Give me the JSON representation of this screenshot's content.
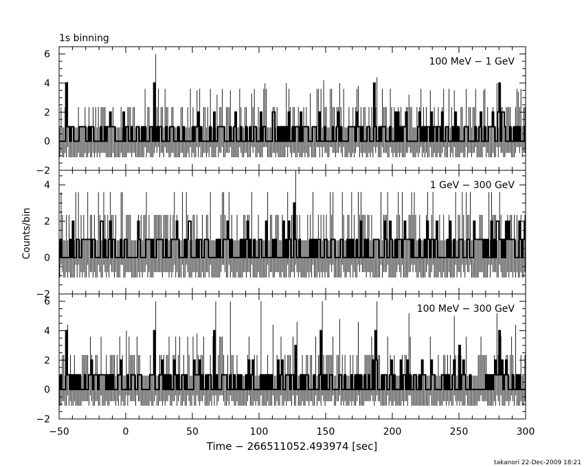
{
  "header_label": "1s binning",
  "ylabel": "Counts/bin",
  "xlabel": "Time − 266511052.493974 [sec]",
  "footer": "takanori 22-Dec-2009 18:21",
  "chart_data": [
    {
      "type": "bar",
      "panel_label": "100 MeV − 1 GeV",
      "xlim": [
        -50,
        300
      ],
      "ylim": [
        -2,
        6.5
      ],
      "y_ticks": [
        -2,
        0,
        2,
        4,
        6
      ],
      "bin_width": 1,
      "error_bars": "poisson",
      "spike_times": [
        -45,
        21,
        66,
        101,
        110,
        145,
        186,
        280
      ],
      "spike_values": [
        4,
        4,
        2,
        2,
        2,
        2,
        4,
        4
      ],
      "peak_times": [
        -44,
        22,
        53,
        68,
        78,
        94,
        104,
        120,
        138,
        148,
        160,
        174,
        188,
        212,
        228,
        246,
        268,
        278,
        294
      ],
      "peak_values": [
        4.1,
        6.0,
        3.5,
        3.2,
        3.5,
        3.3,
        4.0,
        4.0,
        3.3,
        4.2,
        4.0,
        3.8,
        4.4,
        3.2,
        3.5,
        3.5,
        3.5,
        4.0,
        3.4
      ]
    },
    {
      "type": "bar",
      "panel_label": "1 GeV − 300 GeV",
      "xlim": [
        -50,
        300
      ],
      "ylim": [
        -2,
        4.8
      ],
      "y_ticks": [
        -2,
        0,
        2,
        4
      ],
      "bin_width": 1,
      "error_bars": "poisson",
      "spike_times": [
        105,
        126,
        209,
        274
      ],
      "spike_values": [
        2,
        3,
        2,
        2
      ],
      "peak_times": [
        -38,
        -3,
        45,
        63,
        77,
        106,
        121,
        127,
        140,
        155,
        176,
        204,
        214,
        247,
        272
      ],
      "peak_values": [
        3.6,
        3.6,
        3.6,
        3.6,
        3.6,
        3.6,
        3.6,
        4.8,
        3.6,
        3.6,
        3.6,
        3.6,
        3.6,
        3.6,
        3.6
      ]
    },
    {
      "type": "bar",
      "panel_label": "100 MeV − 300 GeV",
      "xlim": [
        -50,
        300
      ],
      "ylim": [
        -2,
        6.5
      ],
      "y_ticks": [
        -2,
        0,
        2,
        4,
        6
      ],
      "bin_width": 1,
      "error_bars": "poisson",
      "spike_times": [
        -45,
        21,
        66,
        127,
        146,
        187,
        250,
        280
      ],
      "spike_values": [
        4,
        4,
        4,
        3,
        4,
        4,
        3,
        4
      ],
      "peak_times": [
        -44,
        0,
        22,
        53,
        67,
        78,
        101,
        110,
        128,
        147,
        160,
        174,
        188,
        212,
        246,
        278,
        292
      ],
      "peak_values": [
        4.4,
        4.0,
        6.0,
        3.8,
        6.0,
        6.0,
        6.0,
        4.4,
        4.6,
        6.0,
        4.8,
        4.6,
        6.0,
        5.2,
        5.0,
        5.2,
        4.4
      ]
    }
  ]
}
